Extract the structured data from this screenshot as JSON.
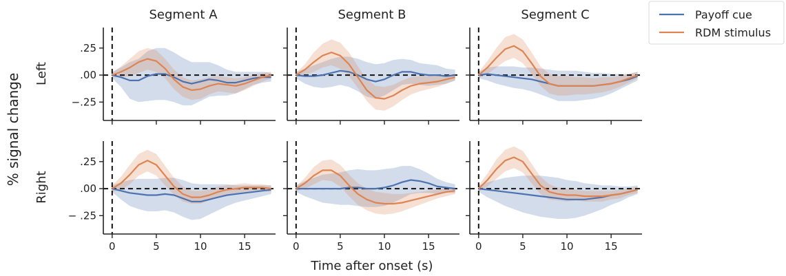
{
  "chart_data": {
    "type": "line",
    "ylabel": "% signal change",
    "xlabel": "Time after onset (s)",
    "columns": [
      "Segment A",
      "Segment B",
      "Segment C"
    ],
    "rows": [
      "Left",
      "Right"
    ],
    "x": [
      0,
      1,
      2,
      3,
      4,
      5,
      6,
      7,
      8,
      9,
      10,
      11,
      12,
      13,
      14,
      15,
      16,
      17,
      18
    ],
    "xlim": [
      -1,
      18.5
    ],
    "ylim": [
      -0.42,
      0.44
    ],
    "xticks": [
      0,
      5,
      10,
      15
    ],
    "xtick_labels": [
      "0",
      "5",
      "10",
      "15"
    ],
    "yticks": [
      0.25,
      0,
      -0.25
    ],
    "ytick_labels_row0": [
      ".25",
      ".00",
      "−.25"
    ],
    "ytick_labels_row1": [
      ".25",
      ".00",
      "− .25"
    ],
    "series_names": [
      "Payoff cue",
      "RDM stimulus"
    ],
    "colors": {
      "payoff": "#4c72b0",
      "rdm": "#dd8452"
    },
    "legend_position": "upper-right-outside",
    "panels": [
      {
        "row": 0,
        "col": 0,
        "payoff": [
          0,
          -0.02,
          -0.05,
          -0.05,
          -0.01,
          0.01,
          0.01,
          -0.02,
          -0.06,
          -0.08,
          -0.06,
          -0.04,
          -0.05,
          -0.07,
          -0.07,
          -0.05,
          -0.03,
          -0.02,
          -0.02
        ],
        "payoff_ci": [
          0.03,
          0.09,
          0.17,
          0.2,
          0.23,
          0.24,
          0.24,
          0.23,
          0.22,
          0.2,
          0.18,
          0.16,
          0.14,
          0.12,
          0.1,
          0.08,
          0.06,
          0.05,
          0.04
        ],
        "rdm": [
          0,
          0.03,
          0.07,
          0.12,
          0.15,
          0.13,
          0.06,
          -0.04,
          -0.11,
          -0.14,
          -0.13,
          -0.1,
          -0.08,
          -0.09,
          -0.1,
          -0.08,
          -0.05,
          -0.02,
          0
        ],
        "rdm_ci": [
          0.02,
          0.05,
          0.08,
          0.1,
          0.1,
          0.1,
          0.09,
          0.09,
          0.09,
          0.09,
          0.09,
          0.08,
          0.07,
          0.07,
          0.07,
          0.06,
          0.05,
          0.04,
          0.03
        ]
      },
      {
        "row": 0,
        "col": 1,
        "payoff": [
          0,
          -0.01,
          -0.01,
          0,
          0.02,
          0.04,
          0.03,
          0,
          -0.04,
          -0.06,
          -0.04,
          0,
          0.03,
          0.03,
          0.01,
          0,
          0,
          -0.01,
          0
        ],
        "payoff_ci": [
          0.03,
          0.07,
          0.1,
          0.12,
          0.13,
          0.13,
          0.14,
          0.15,
          0.16,
          0.16,
          0.15,
          0.14,
          0.12,
          0.11,
          0.1,
          0.1,
          0.09,
          0.07,
          0.05
        ],
        "rdm": [
          0,
          0.05,
          0.12,
          0.18,
          0.21,
          0.18,
          0.1,
          -0.02,
          -0.14,
          -0.21,
          -0.22,
          -0.19,
          -0.14,
          -0.1,
          -0.08,
          -0.07,
          -0.06,
          -0.04,
          -0.02
        ],
        "rdm_ci": [
          0.02,
          0.05,
          0.09,
          0.11,
          0.12,
          0.12,
          0.11,
          0.1,
          0.1,
          0.11,
          0.11,
          0.1,
          0.09,
          0.08,
          0.07,
          0.06,
          0.05,
          0.04,
          0.03
        ]
      },
      {
        "row": 0,
        "col": 2,
        "payoff": [
          0,
          0.01,
          0,
          -0.01,
          -0.02,
          -0.03,
          -0.04,
          -0.06,
          -0.08,
          -0.1,
          -0.1,
          -0.1,
          -0.1,
          -0.1,
          -0.09,
          -0.08,
          -0.06,
          -0.04,
          -0.01
        ],
        "payoff_ci": [
          0.03,
          0.06,
          0.08,
          0.09,
          0.1,
          0.1,
          0.11,
          0.12,
          0.13,
          0.14,
          0.14,
          0.14,
          0.13,
          0.12,
          0.11,
          0.09,
          0.07,
          0.05,
          0.04
        ],
        "rdm": [
          0,
          0.07,
          0.16,
          0.24,
          0.27,
          0.22,
          0.11,
          -0.01,
          -0.08,
          -0.1,
          -0.1,
          -0.1,
          -0.1,
          -0.1,
          -0.09,
          -0.08,
          -0.06,
          -0.03,
          0
        ],
        "rdm_ci": [
          0.03,
          0.06,
          0.09,
          0.11,
          0.11,
          0.11,
          0.1,
          0.09,
          0.09,
          0.09,
          0.09,
          0.08,
          0.08,
          0.07,
          0.07,
          0.06,
          0.05,
          0.04,
          0.03
        ]
      },
      {
        "row": 1,
        "col": 0,
        "payoff": [
          0,
          -0.02,
          -0.04,
          -0.05,
          -0.06,
          -0.06,
          -0.05,
          -0.06,
          -0.09,
          -0.12,
          -0.12,
          -0.1,
          -0.08,
          -0.06,
          -0.05,
          -0.04,
          -0.03,
          -0.02,
          -0.01
        ],
        "payoff_ci": [
          0.03,
          0.08,
          0.12,
          0.14,
          0.15,
          0.15,
          0.15,
          0.16,
          0.17,
          0.17,
          0.16,
          0.14,
          0.12,
          0.1,
          0.08,
          0.07,
          0.06,
          0.05,
          0.04
        ],
        "rdm": [
          0,
          0.05,
          0.13,
          0.22,
          0.26,
          0.22,
          0.12,
          0.02,
          -0.05,
          -0.08,
          -0.08,
          -0.06,
          -0.03,
          -0.01,
          0,
          0.01,
          0.01,
          0.01,
          0
        ],
        "rdm_ci": [
          0.03,
          0.06,
          0.09,
          0.1,
          0.1,
          0.1,
          0.09,
          0.08,
          0.07,
          0.06,
          0.06,
          0.05,
          0.05,
          0.04,
          0.04,
          0.04,
          0.03,
          0.03,
          0.03
        ]
      },
      {
        "row": 1,
        "col": 1,
        "payoff": [
          0,
          0,
          0,
          0,
          0,
          0,
          0.01,
          0.01,
          0,
          0,
          0.01,
          0.03,
          0.06,
          0.08,
          0.07,
          0.05,
          0.02,
          0.01,
          0
        ],
        "payoff_ci": [
          0.03,
          0.07,
          0.1,
          0.13,
          0.14,
          0.15,
          0.16,
          0.17,
          0.17,
          0.17,
          0.17,
          0.16,
          0.15,
          0.13,
          0.11,
          0.09,
          0.07,
          0.05,
          0.04
        ],
        "rdm": [
          0,
          0.05,
          0.12,
          0.17,
          0.17,
          0.12,
          0.03,
          -0.05,
          -0.1,
          -0.13,
          -0.14,
          -0.14,
          -0.13,
          -0.11,
          -0.09,
          -0.07,
          -0.05,
          -0.03,
          -0.02
        ],
        "rdm_ci": [
          0.02,
          0.05,
          0.08,
          0.09,
          0.1,
          0.1,
          0.1,
          0.1,
          0.1,
          0.1,
          0.1,
          0.09,
          0.08,
          0.07,
          0.06,
          0.05,
          0.04,
          0.04,
          0.03
        ]
      },
      {
        "row": 1,
        "col": 2,
        "payoff": [
          0,
          -0.01,
          -0.02,
          -0.03,
          -0.04,
          -0.05,
          -0.06,
          -0.07,
          -0.08,
          -0.09,
          -0.1,
          -0.1,
          -0.1,
          -0.09,
          -0.08,
          -0.06,
          -0.05,
          -0.03,
          -0.01
        ],
        "payoff_ci": [
          0.03,
          0.07,
          0.1,
          0.13,
          0.15,
          0.17,
          0.18,
          0.19,
          0.19,
          0.19,
          0.18,
          0.17,
          0.15,
          0.13,
          0.11,
          0.09,
          0.07,
          0.05,
          0.04
        ],
        "rdm": [
          0,
          0.08,
          0.18,
          0.26,
          0.29,
          0.25,
          0.14,
          0.03,
          -0.03,
          -0.05,
          -0.06,
          -0.06,
          -0.07,
          -0.07,
          -0.07,
          -0.06,
          -0.05,
          -0.03,
          -0.01
        ],
        "rdm_ci": [
          0.03,
          0.06,
          0.09,
          0.1,
          0.1,
          0.1,
          0.09,
          0.08,
          0.07,
          0.06,
          0.06,
          0.05,
          0.05,
          0.05,
          0.05,
          0.04,
          0.04,
          0.03,
          0.03
        ]
      }
    ]
  }
}
